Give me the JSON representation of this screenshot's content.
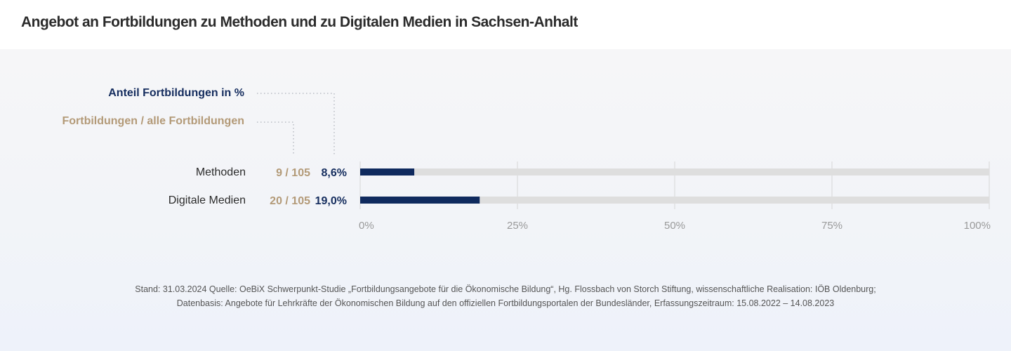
{
  "header": {
    "title": "Angebot an Fortbildungen zu Methoden und zu Digitalen Medien in Sachsen-Anhalt"
  },
  "legend": {
    "percent_label": "Anteil Fortbildungen  in %",
    "count_label": "Fortbildungen / alle Fortbildungen"
  },
  "colors": {
    "bar_fill": "#0f2a5e",
    "bar_track": "#dedede",
    "percent_text": "#152d5e",
    "count_text": "#b39a78",
    "grid": "#d6d6d6"
  },
  "chart_data": {
    "type": "bar",
    "orientation": "horizontal",
    "title": "Angebot an Fortbildungen zu Methoden und zu Digitalen Medien in Sachsen-Anhalt",
    "categories": [
      "Methoden",
      "Digitale Medien"
    ],
    "values": [
      8.6,
      19.0
    ],
    "value_labels": [
      "8,6%",
      "19,0%"
    ],
    "count_labels": [
      "9 / 105",
      "20 / 105"
    ],
    "counts": [
      9,
      20
    ],
    "totals": [
      105,
      105
    ],
    "xlabel": "",
    "ylabel": "",
    "xlim": [
      0,
      100
    ],
    "xticks": [
      0,
      25,
      50,
      75,
      100
    ],
    "xtick_labels": [
      "0%",
      "25%",
      "50%",
      "75%",
      "100%"
    ],
    "grid": true,
    "legend_placement": "top-left"
  },
  "footer": {
    "line1": "Stand: 31.03.2024 Quelle: OeBiX Schwerpunkt-Studie „Fortbildungsangebote für die Ökonomische Bildung“, Hg. Flossbach von Storch Stiftung, wissenschaftliche Realisation: IÖB Oldenburg;",
    "line2": "Datenbasis: Angebote für Lehrkräfte der Ökonomischen Bildung auf den offiziellen Fortbildungsportalen der Bundesländer, Erfassungszeitraum: 15.08.2022 – 14.08.2023"
  }
}
